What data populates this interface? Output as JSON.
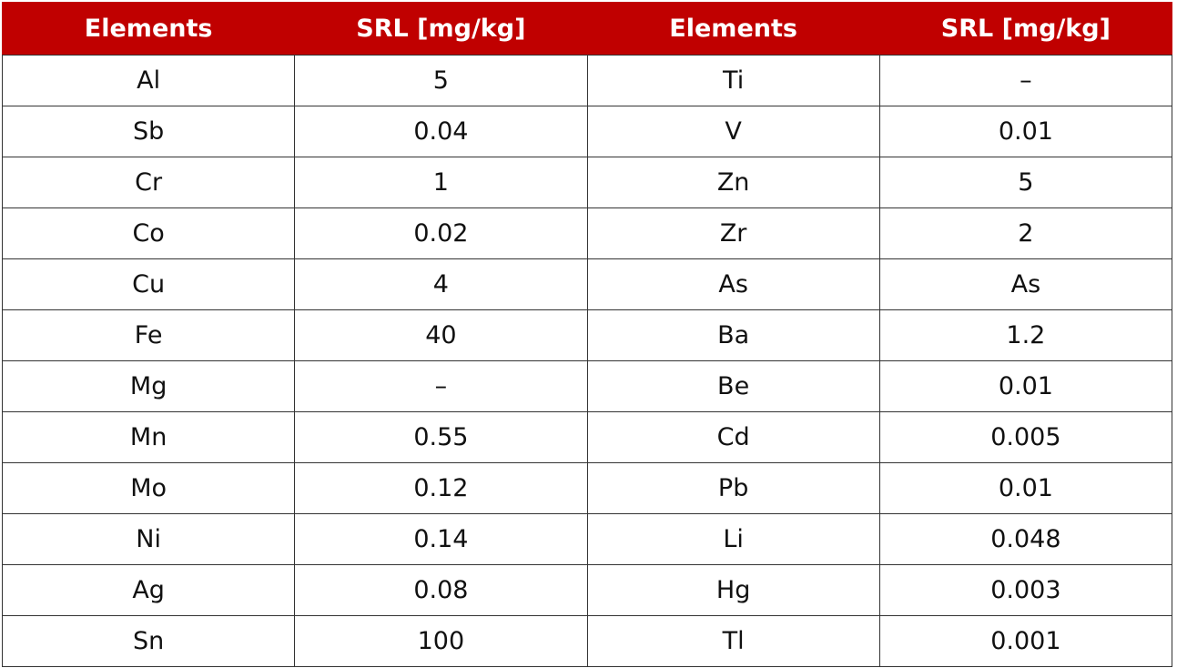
{
  "table": {
    "header": [
      "Elements",
      "SRL [mg/kg]",
      "Elements",
      "SRL [mg/kg]"
    ],
    "rows": [
      [
        "Al",
        "5",
        "Ti",
        "–"
      ],
      [
        "Sb",
        "0.04",
        "V",
        "0.01"
      ],
      [
        "Cr",
        "1",
        "Zn",
        "5"
      ],
      [
        "Co",
        "0.02",
        "Zr",
        "2"
      ],
      [
        "Cu",
        "4",
        "As",
        "As"
      ],
      [
        "Fe",
        "40",
        "Ba",
        "1.2"
      ],
      [
        "Mg",
        "–",
        "Be",
        "0.01"
      ],
      [
        "Mn",
        "0.55",
        "Cd",
        "0.005"
      ],
      [
        "Mo",
        "0.12",
        "Pb",
        "0.01"
      ],
      [
        "Ni",
        "0.14",
        "Li",
        "0.048"
      ],
      [
        "Ag",
        "0.08",
        "Hg",
        "0.003"
      ],
      [
        "Sn",
        "100",
        "Tl",
        "0.001"
      ]
    ]
  }
}
